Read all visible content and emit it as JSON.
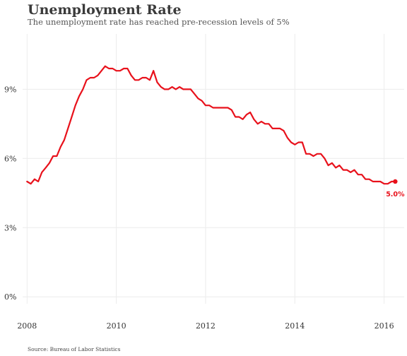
{
  "title": "Unemployment Rate",
  "subtitle": "The unemployment rate has reached pre-recession levels of 5%",
  "source": "Source: Bureau of Labor Statistics",
  "colors": {
    "line": "#e8111b",
    "grid": "#ececec",
    "text": "#333333"
  },
  "chart_data": {
    "type": "line",
    "title": "Unemployment Rate",
    "subtitle": "The unemployment rate has reached pre-recession levels of 5%",
    "xlabel": "",
    "ylabel": "",
    "x_unit": "year",
    "xlim": [
      2007.9,
      2016.45
    ],
    "ylim": [
      -0.3,
      11.4
    ],
    "xticks": [
      2008,
      2010,
      2012,
      2014,
      2016
    ],
    "xtick_labels": [
      "2008",
      "2010",
      "2012",
      "2014",
      "2016"
    ],
    "yticks": [
      0,
      3,
      6,
      9
    ],
    "ytick_labels": [
      "0%",
      "3%",
      "6%",
      "9%"
    ],
    "grid": true,
    "legend": "none",
    "end_label": "5.0%",
    "series": [
      {
        "x": [
          2008.0,
          2008.083,
          2008.167,
          2008.25,
          2008.333,
          2008.417,
          2008.5,
          2008.583,
          2008.667,
          2008.75,
          2008.833,
          2008.917,
          2009.0,
          2009.083,
          2009.167,
          2009.25,
          2009.333,
          2009.417,
          2009.5,
          2009.583,
          2009.667,
          2009.75,
          2009.833,
          2009.917,
          2010.0,
          2010.083,
          2010.167,
          2010.25,
          2010.333,
          2010.417,
          2010.5,
          2010.583,
          2010.667,
          2010.75,
          2010.833,
          2010.917,
          2011.0,
          2011.083,
          2011.167,
          2011.25,
          2011.333,
          2011.417,
          2011.5,
          2011.583,
          2011.667,
          2011.75,
          2011.833,
          2011.917,
          2012.0,
          2012.083,
          2012.167,
          2012.25,
          2012.333,
          2012.417,
          2012.5,
          2012.583,
          2012.667,
          2012.75,
          2012.833,
          2012.917,
          2013.0,
          2013.083,
          2013.167,
          2013.25,
          2013.333,
          2013.417,
          2013.5,
          2013.583,
          2013.667,
          2013.75,
          2013.833,
          2013.917,
          2014.0,
          2014.083,
          2014.167,
          2014.25,
          2014.333,
          2014.417,
          2014.5,
          2014.583,
          2014.667,
          2014.75,
          2014.833,
          2014.917,
          2015.0,
          2015.083,
          2015.167,
          2015.25,
          2015.333,
          2015.417,
          2015.5,
          2015.583,
          2015.667,
          2015.75,
          2015.833,
          2015.917,
          2016.0,
          2016.083,
          2016.167,
          2016.25
        ],
        "values": [
          5.0,
          4.9,
          5.1,
          5.0,
          5.4,
          5.6,
          5.8,
          6.1,
          6.1,
          6.5,
          6.8,
          7.3,
          7.8,
          8.3,
          8.7,
          9.0,
          9.4,
          9.5,
          9.5,
          9.6,
          9.8,
          10.0,
          9.9,
          9.9,
          9.8,
          9.8,
          9.9,
          9.9,
          9.6,
          9.4,
          9.4,
          9.5,
          9.5,
          9.4,
          9.8,
          9.3,
          9.1,
          9.0,
          9.0,
          9.1,
          9.0,
          9.1,
          9.0,
          9.0,
          9.0,
          8.8,
          8.6,
          8.5,
          8.3,
          8.3,
          8.2,
          8.2,
          8.2,
          8.2,
          8.2,
          8.1,
          7.8,
          7.8,
          7.7,
          7.9,
          8.0,
          7.7,
          7.5,
          7.6,
          7.5,
          7.5,
          7.3,
          7.3,
          7.3,
          7.2,
          6.9,
          6.7,
          6.6,
          6.7,
          6.7,
          6.2,
          6.2,
          6.1,
          6.2,
          6.2,
          6.0,
          5.7,
          5.8,
          5.6,
          5.7,
          5.5,
          5.5,
          5.4,
          5.5,
          5.3,
          5.3,
          5.1,
          5.1,
          5.0,
          5.0,
          5.0,
          4.9,
          4.9,
          5.0,
          5.0
        ]
      }
    ]
  }
}
